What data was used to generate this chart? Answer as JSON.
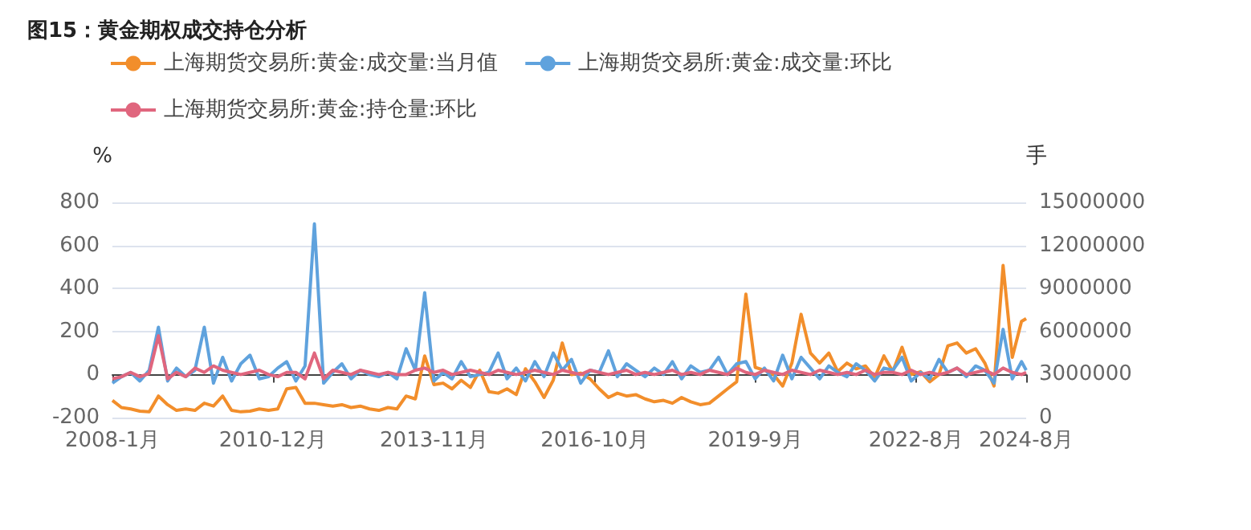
{
  "chart_data": {
    "type": "line",
    "title": "图15：黄金期权成交持仓分析",
    "ylabel": "%",
    "y2label": "手",
    "x": [
      "2008-01",
      "2008-03",
      "2008-05",
      "2008-07",
      "2008-09",
      "2008-11",
      "2009-01",
      "2009-03",
      "2009-05",
      "2009-07",
      "2009-09",
      "2009-11",
      "2010-01",
      "2010-03",
      "2010-05",
      "2010-07",
      "2010-09",
      "2010-11",
      "2011-01",
      "2011-03",
      "2011-05",
      "2011-07",
      "2011-09",
      "2011-11",
      "2012-01",
      "2012-03",
      "2012-05",
      "2012-07",
      "2012-09",
      "2012-11",
      "2013-01",
      "2013-03",
      "2013-05",
      "2013-07",
      "2013-09",
      "2013-11",
      "2014-01",
      "2014-03",
      "2014-05",
      "2014-07",
      "2014-09",
      "2014-11",
      "2015-01",
      "2015-03",
      "2015-05",
      "2015-07",
      "2015-09",
      "2015-11",
      "2016-01",
      "2016-03",
      "2016-05",
      "2016-07",
      "2016-09",
      "2016-11",
      "2017-01",
      "2017-03",
      "2017-05",
      "2017-07",
      "2017-09",
      "2017-11",
      "2018-01",
      "2018-03",
      "2018-05",
      "2018-07",
      "2018-09",
      "2018-11",
      "2019-01",
      "2019-03",
      "2019-05",
      "2019-07",
      "2019-09",
      "2019-11",
      "2020-01",
      "2020-03",
      "2020-05",
      "2020-07",
      "2020-09",
      "2020-11",
      "2021-01",
      "2021-03",
      "2021-05",
      "2021-07",
      "2021-09",
      "2021-11",
      "2022-01",
      "2022-03",
      "2022-05",
      "2022-07",
      "2022-09",
      "2022-11",
      "2023-01",
      "2023-03",
      "2023-05",
      "2023-07",
      "2023-09",
      "2023-11",
      "2024-01",
      "2024-03",
      "2024-05",
      "2024-07",
      "2024-08"
    ],
    "series": [
      {
        "name": "上海期货交易所:黄金:成交量:当月值",
        "color": "#f28e2b",
        "axis": "y2",
        "values": [
          1200000,
          700000,
          600000,
          450000,
          400000,
          1500000,
          900000,
          500000,
          600000,
          500000,
          1000000,
          800000,
          1500000,
          500000,
          400000,
          450000,
          600000,
          500000,
          600000,
          2000000,
          2100000,
          1000000,
          1000000,
          900000,
          800000,
          900000,
          700000,
          800000,
          600000,
          500000,
          700000,
          600000,
          1500000,
          1300000,
          4300000,
          2300000,
          2400000,
          2000000,
          2600000,
          2100000,
          3300000,
          1800000,
          1700000,
          2000000,
          1600000,
          3400000,
          2500000,
          1400000,
          2600000,
          5200000,
          3000000,
          3100000,
          2700000,
          2000000,
          1400000,
          1700000,
          1500000,
          1600000,
          1300000,
          1100000,
          1200000,
          1000000,
          1400000,
          1100000,
          900000,
          1000000,
          1500000,
          2000000,
          2500000,
          8600000,
          3500000,
          3300000,
          3000000,
          2200000,
          3800000,
          7200000,
          4500000,
          3800000,
          4500000,
          3200000,
          3800000,
          3400000,
          3600000,
          2800000,
          4300000,
          3200000,
          4900000,
          3000000,
          3200000,
          2500000,
          3000000,
          5000000,
          5200000,
          4500000,
          4800000,
          3800000,
          2200000,
          10600000,
          4200000,
          6700000,
          6900000
        ]
      },
      {
        "name": "上海期货交易所:黄金:成交量:环比",
        "color": "#5fa2dd",
        "values": [
          -40,
          -10,
          10,
          -30,
          20,
          220,
          -30,
          30,
          -10,
          20,
          220,
          -40,
          80,
          -30,
          50,
          90,
          -20,
          -10,
          30,
          60,
          -30,
          40,
          700,
          -40,
          10,
          50,
          -20,
          20,
          0,
          -10,
          10,
          -20,
          120,
          20,
          380,
          -30,
          10,
          -20,
          60,
          -10,
          0,
          10,
          100,
          -20,
          30,
          -30,
          60,
          -10,
          100,
          20,
          70,
          -40,
          20,
          10,
          110,
          -10,
          50,
          20,
          -10,
          30,
          0,
          60,
          -20,
          40,
          10,
          20,
          80,
          0,
          50,
          60,
          -20,
          30,
          -30,
          90,
          -20,
          80,
          30,
          -20,
          40,
          10,
          -10,
          50,
          20,
          -30,
          30,
          20,
          80,
          -30,
          10,
          -20,
          70,
          10,
          30,
          -10,
          40,
          20,
          -40,
          210,
          -20,
          60,
          20
        ]
      },
      {
        "name": "上海期货交易所:黄金:持仓量:环比",
        "color": "#e0667e",
        "values": [
          -20,
          -10,
          10,
          -10,
          5,
          180,
          -20,
          10,
          -10,
          30,
          10,
          40,
          20,
          10,
          0,
          10,
          20,
          0,
          -10,
          10,
          10,
          -20,
          100,
          -20,
          20,
          10,
          0,
          20,
          10,
          0,
          10,
          0,
          0,
          20,
          30,
          10,
          20,
          0,
          10,
          20,
          10,
          0,
          20,
          10,
          0,
          10,
          20,
          10,
          0,
          20,
          10,
          0,
          20,
          10,
          0,
          10,
          20,
          0,
          10,
          0,
          10,
          20,
          0,
          10,
          0,
          20,
          10,
          0,
          30,
          10,
          0,
          20,
          10,
          0,
          20,
          10,
          0,
          20,
          10,
          0,
          10,
          0,
          20,
          0,
          10,
          10,
          0,
          20,
          0,
          10,
          0,
          10,
          30,
          0,
          10,
          20,
          0,
          30,
          10,
          0,
          10
        ]
      }
    ],
    "xlim": [
      "2008-01",
      "2024-08"
    ],
    "xticks": [
      {
        "value": "2008-01",
        "label": "2008-1月"
      },
      {
        "value": "2010-12",
        "label": "2010-12月"
      },
      {
        "value": "2013-11",
        "label": "2013-11月"
      },
      {
        "value": "2016-10",
        "label": "2016-10月"
      },
      {
        "value": "2019-09",
        "label": "2019-9月"
      },
      {
        "value": "2022-08",
        "label": "2022-8月"
      },
      {
        "value": "2024-08",
        "label": "2024-8月"
      }
    ],
    "ylim": [
      -200,
      800
    ],
    "yticks": [
      -200,
      0,
      200,
      400,
      600,
      800
    ],
    "y2lim": [
      0,
      15000000
    ],
    "y2ticks": [
      0,
      3000000,
      6000000,
      9000000,
      12000000,
      15000000
    ],
    "grid": "y",
    "legend": "top left",
    "marker": "none",
    "line_style": "solid"
  }
}
